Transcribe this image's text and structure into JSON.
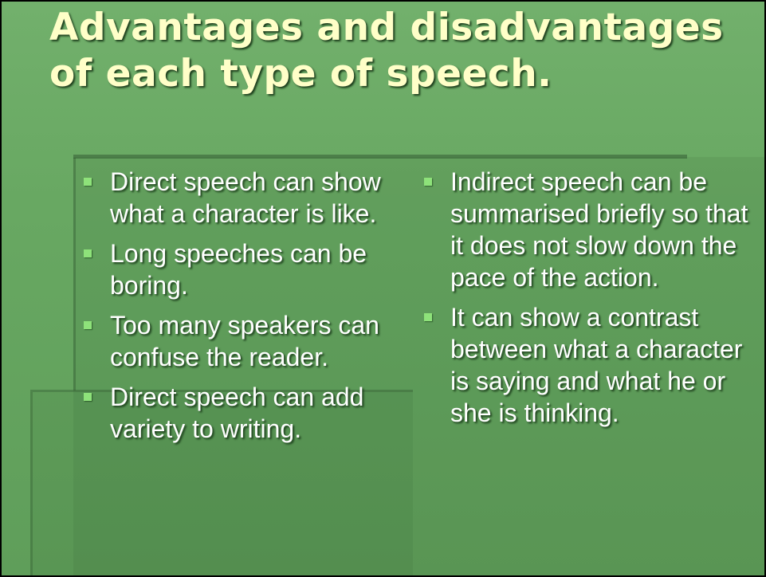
{
  "slide": {
    "title": "Advantages and disadvantages of each type of speech.",
    "left_column": [
      "Direct speech can show what a character is like.",
      "Long speeches can be boring.",
      "Too many speakers can confuse the reader.",
      "Direct speech can add variety to writing."
    ],
    "right_column": [
      "Indirect speech can be summarised briefly so that it does not slow down the pace of the action.",
      "It can show a contrast between what a character is saying and what he or she is thinking."
    ],
    "colors": {
      "background": "#68a862",
      "title": "#ffffc8",
      "text": "#ffffff",
      "bullet": "#8ee27a"
    },
    "icons": {
      "bullet": "square-bullet-icon"
    }
  }
}
